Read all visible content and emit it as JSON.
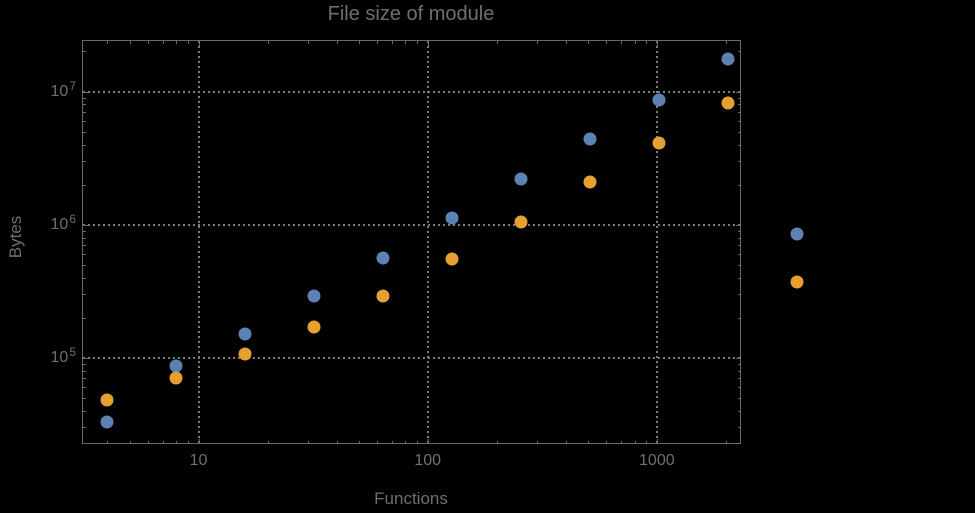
{
  "window": {
    "background_color": "#000000",
    "frame_color": "#6a6a6a",
    "gridline_color": "#7d7d7d",
    "text_color": "#6f6f6f"
  },
  "chart_data": {
    "type": "scatter",
    "title": "File size of module",
    "xlabel": "Functions",
    "ylabel": "Bytes",
    "x_scale": "log",
    "y_scale": "log",
    "xlim": [
      3.1,
      2330
    ],
    "ylim": [
      22500,
      24400000
    ],
    "grid": "dotted lines at major ticks",
    "legend": "none",
    "x_major_ticks": [
      {
        "value": 10,
        "label": "10"
      },
      {
        "value": 100,
        "label": "100"
      },
      {
        "value": 1000,
        "label": "1000"
      }
    ],
    "x_minor_ticks": [
      4,
      5,
      6,
      7,
      8,
      9,
      20,
      30,
      40,
      50,
      60,
      70,
      80,
      90,
      200,
      300,
      400,
      500,
      600,
      700,
      800,
      900,
      2000
    ],
    "y_major_ticks": [
      {
        "value": 100000,
        "base": "10",
        "exp": "5"
      },
      {
        "value": 1000000,
        "base": "10",
        "exp": "6"
      },
      {
        "value": 10000000,
        "base": "10",
        "exp": "7"
      }
    ],
    "y_minor_ticks": [
      30000,
      40000,
      50000,
      60000,
      70000,
      80000,
      90000,
      200000,
      300000,
      400000,
      500000,
      600000,
      700000,
      800000,
      900000,
      2000000,
      3000000,
      4000000,
      5000000,
      6000000,
      7000000,
      8000000,
      9000000,
      20000000
    ],
    "x": [
      4,
      8,
      16,
      32,
      64,
      128,
      256,
      512,
      1024,
      2048,
      4096
    ],
    "series": [
      {
        "name": "series-1-blue",
        "color": "#5E81B5",
        "values": [
          33000,
          87000,
          152000,
          290000,
          560000,
          1120000,
          2200000,
          4400000,
          8700000,
          17500000,
          850000
        ]
      },
      {
        "name": "series-2-orange",
        "color": "#E5A030",
        "values": [
          48000,
          70000,
          107000,
          170000,
          292000,
          550000,
          1050000,
          2100000,
          4100000,
          8200000,
          370000
        ]
      }
    ]
  }
}
